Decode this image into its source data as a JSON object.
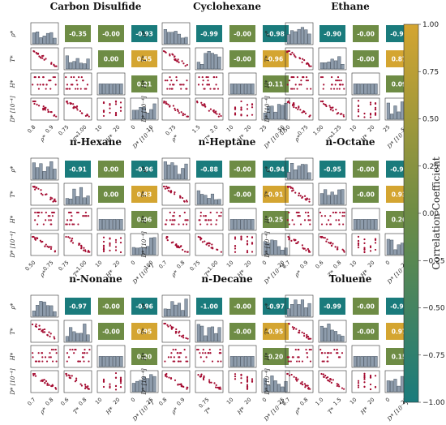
{
  "chart_data": {
    "type": "scatter_matrix",
    "variables": [
      "ρ*",
      "T*",
      "H*",
      "D* [10⁻⁴]"
    ],
    "variable_axis_labels": [
      "ρ*",
      "T*",
      "H*",
      "D* [10⁻⁴]"
    ],
    "colorbar": {
      "label": "Correlation Coefficient",
      "range": [
        -1.0,
        1.0
      ],
      "ticks": [
        "1.00",
        "0.75",
        "0.50",
        "0.25",
        "0.00",
        "−0.25",
        "−0.50",
        "−0.75",
        "−1.00"
      ],
      "colors": [
        "#d4a531",
        "#6e8c45",
        "#1a7b7c"
      ]
    },
    "marker_color": "#a50d32",
    "hist_color": "#8e9cac",
    "panels": [
      {
        "title": "Carbon Disulfide",
        "corr": [
          "-0.35",
          "-0.00",
          "-0.93",
          "0.00",
          "0.55",
          "0.21"
        ],
        "ticks": {
          "rho": [
            "0.8",
            "0.9"
          ],
          "T": [
            "0.75",
            "1.00"
          ],
          "H": [
            "10",
            "20"
          ],
          "D": [
            "0",
            "10"
          ]
        }
      },
      {
        "title": "Cyclohexane",
        "corr": [
          "-0.99",
          "-0.00",
          "-0.98",
          "-0.00",
          "0.96",
          "0.11"
        ],
        "ticks": {
          "rho": [
            "0.75"
          ],
          "T": [
            "1.5",
            "2.0"
          ],
          "H": [
            "10",
            "20"
          ],
          "D": [
            "25",
            "50"
          ]
        }
      },
      {
        "title": "Ethane",
        "corr": [
          "-0.90",
          "-0.00",
          "-0.98",
          "-0.00",
          "0.87",
          "0.09"
        ],
        "ticks": {
          "rho": [
            "0.50",
            "0.75"
          ],
          "T": [
            "1.00",
            "1.25"
          ],
          "H": [
            "10",
            "20"
          ],
          "D": [
            "25",
            "50"
          ]
        }
      },
      {
        "title": "n-Hexane",
        "corr": [
          "-0.91",
          "0.00",
          "-0.96",
          "0.00",
          "0.83",
          "0.06"
        ],
        "ticks": {
          "rho": [
            "0.50",
            "0.75"
          ],
          "T": [
            "0.75",
            "1.00"
          ],
          "H": [
            "10",
            "20"
          ],
          "D": [
            "0",
            "100"
          ]
        }
      },
      {
        "title": "n-Heptane",
        "corr": [
          "-0.88",
          "-0.00",
          "-0.94",
          "-0.00",
          "0.91",
          "0.25"
        ],
        "ticks": {
          "rho": [
            "0.7",
            "0.8"
          ],
          "T": [
            "0.75",
            "1.00"
          ],
          "H": [
            "10",
            "20"
          ],
          "D": [
            "0",
            "20"
          ]
        }
      },
      {
        "title": "n-Octane",
        "corr": [
          "-0.95",
          "-0.00",
          "-0.95",
          "-0.00",
          "0.93",
          "0.26"
        ],
        "ticks": {
          "rho": [
            "0.7",
            "0.9"
          ],
          "T": [
            "0.6",
            "0.8"
          ],
          "H": [
            "10",
            "20"
          ],
          "D": [
            "0",
            "20"
          ]
        }
      },
      {
        "title": "n-Nonane",
        "corr": [
          "-0.97",
          "-0.00",
          "-0.96",
          "-0.00",
          "0.95",
          "0.20"
        ],
        "ticks": {
          "rho": [
            "0.7",
            "0.8"
          ],
          "T": [
            "0.6",
            "0.8"
          ],
          "H": [
            "10",
            "20"
          ],
          "D": [
            "0",
            "25"
          ]
        }
      },
      {
        "title": "n-Decane",
        "corr": [
          "-1.00",
          "-0.00",
          "-0.97",
          "-0.00",
          "0.95",
          "0.20"
        ],
        "ticks": {
          "rho": [
            "0.8",
            "0.9"
          ],
          "T": [
            "0.75"
          ],
          "H": [
            "10",
            "20"
          ],
          "D": [
            "0",
            "25"
          ]
        }
      },
      {
        "title": "Toluene",
        "corr": [
          "-0.99",
          "-0.00",
          "-0.98",
          "-0.00",
          "0.97",
          "0.15"
        ],
        "ticks": {
          "rho": [
            "0.7",
            "0.8"
          ],
          "T": [
            "1.0",
            "1.5"
          ],
          "H": [
            "10",
            "20"
          ],
          "D": [
            "0",
            "25"
          ]
        }
      }
    ]
  }
}
